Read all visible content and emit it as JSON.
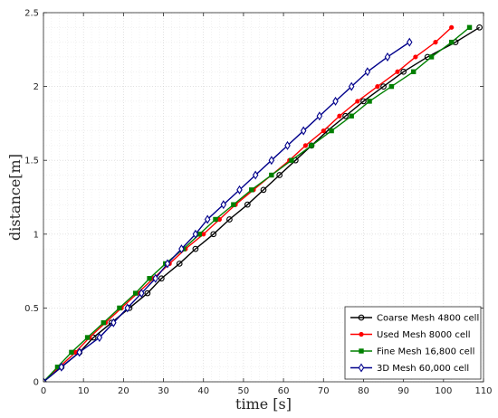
{
  "chart_data": {
    "type": "line",
    "xlabel": "time [s]",
    "ylabel": "distance[m]",
    "xlim": [
      0,
      110
    ],
    "ylim": [
      0,
      2.5
    ],
    "xticks": [
      "0",
      "10",
      "20",
      "30",
      "40",
      "50",
      "60",
      "70",
      "80",
      "90",
      "100",
      "110"
    ],
    "yticks": [
      "0",
      "0.5",
      "1",
      "1.5",
      "2",
      "2.5"
    ],
    "grid": true,
    "minor_grid": true,
    "legend_position": "bottom-right",
    "series": [
      {
        "name": "Coarse Mesh 4800 cell",
        "color": "#000000",
        "marker": "circle",
        "x": [
          0,
          4.5,
          9,
          12.5,
          17,
          21.5,
          26,
          29.5,
          34,
          38,
          42.5,
          46.5,
          51,
          55,
          59,
          63,
          67,
          71,
          75.5,
          80,
          85,
          90,
          96,
          103,
          109
        ],
        "y": [
          0,
          0.1,
          0.2,
          0.3,
          0.4,
          0.5,
          0.6,
          0.7,
          0.8,
          0.9,
          1.0,
          1.1,
          1.2,
          1.3,
          1.4,
          1.5,
          1.6,
          1.7,
          1.8,
          1.9,
          2.0,
          2.1,
          2.2,
          2.3,
          2.4
        ]
      },
      {
        "name": "Used Mesh 8000 cell",
        "color": "#ff0000",
        "marker": "dot",
        "x": [
          0,
          4,
          8,
          11.5,
          15.5,
          19.5,
          23.5,
          27.5,
          31.5,
          35.5,
          40,
          44,
          48,
          52.5,
          57,
          61.5,
          65.5,
          70,
          74,
          78.5,
          83.5,
          88.5,
          93,
          98,
          102
        ],
        "y": [
          0,
          0.1,
          0.2,
          0.3,
          0.4,
          0.5,
          0.6,
          0.7,
          0.8,
          0.9,
          1.0,
          1.1,
          1.2,
          1.3,
          1.4,
          1.5,
          1.6,
          1.7,
          1.8,
          1.9,
          2.0,
          2.1,
          2.2,
          2.3,
          2.4
        ]
      },
      {
        "name": "Fine Mesh 16,800 cell",
        "color": "#008000",
        "marker": "square",
        "x": [
          0,
          3.5,
          7,
          11,
          15,
          19,
          23,
          26.5,
          30.5,
          35,
          39,
          43,
          47.5,
          52,
          57,
          62,
          67,
          72,
          77,
          81.5,
          87,
          92.5,
          97,
          102,
          106.5
        ],
        "y": [
          0,
          0.1,
          0.2,
          0.3,
          0.4,
          0.5,
          0.6,
          0.7,
          0.8,
          0.9,
          1.0,
          1.1,
          1.2,
          1.3,
          1.4,
          1.5,
          1.6,
          1.7,
          1.8,
          1.9,
          2.0,
          2.1,
          2.2,
          2.3,
          2.4
        ]
      },
      {
        "name": "3D Mesh 60,000 cell",
        "color": "#00008b",
        "marker": "diamond",
        "x": [
          0,
          4.5,
          9,
          14,
          17.5,
          21,
          24.5,
          28,
          31,
          34.5,
          38,
          41,
          45,
          49,
          53,
          57,
          61,
          65,
          69,
          73,
          77,
          81,
          86,
          91.5
        ],
        "y": [
          0,
          0.1,
          0.2,
          0.3,
          0.4,
          0.5,
          0.6,
          0.7,
          0.8,
          0.9,
          1.0,
          1.1,
          1.2,
          1.3,
          1.4,
          1.5,
          1.6,
          1.7,
          1.8,
          1.9,
          2.0,
          2.1,
          2.2,
          2.3
        ]
      }
    ]
  }
}
